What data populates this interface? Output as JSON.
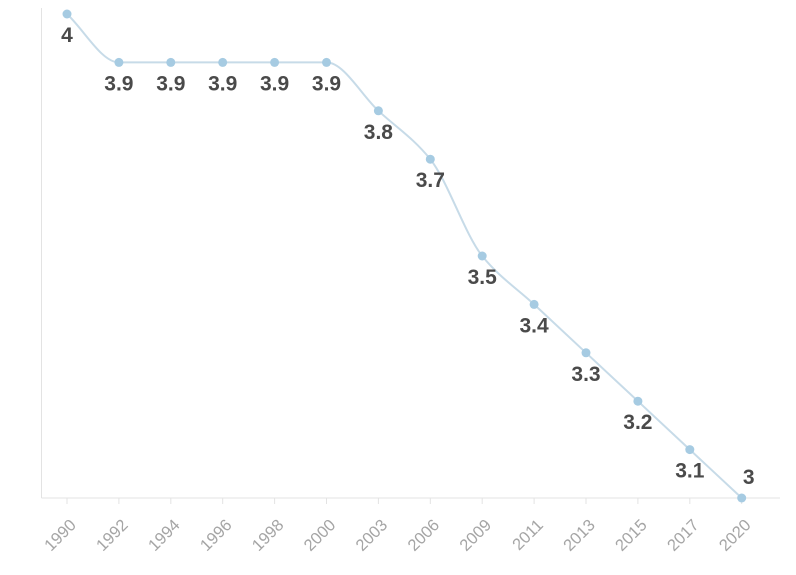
{
  "chart_data": {
    "type": "line",
    "title": "",
    "subtitle": "",
    "xlabel": "",
    "ylabel": "",
    "categories": [
      "1990",
      "1992",
      "1994",
      "1996",
      "1998",
      "2000",
      "2003",
      "2006",
      "2009",
      "2011",
      "2013",
      "2015",
      "2017",
      "2020"
    ],
    "series": [
      {
        "name": "value",
        "values": [
          4,
          3.9,
          3.9,
          3.9,
          3.9,
          3.9,
          3.8,
          3.7,
          3.5,
          3.4,
          3.3,
          3.2,
          3.1,
          3
        ],
        "point_labels": [
          "4",
          "3.9",
          "3.9",
          "3.9",
          "3.9",
          "3.9",
          "3.8",
          "3.7",
          "3.5",
          "3.4",
          "3.3",
          "3.2",
          "3.1",
          "3"
        ],
        "label_positions": [
          "below",
          "below",
          "below",
          "below",
          "below",
          "below",
          "below",
          "below",
          "below",
          "below",
          "below",
          "below",
          "below",
          "above"
        ]
      }
    ],
    "ylim": [
      3,
      4
    ],
    "grid": false,
    "legend": "none",
    "curve": "monotone",
    "x_tick_rotation": -45,
    "colors": {
      "line": "#c7dbe8",
      "marker": "#a6cbe2",
      "point_label": "#4a4a4a",
      "axis_label": "#a5a5a5",
      "axis_line": "#e3e3e3",
      "background": "#ffffff"
    }
  }
}
